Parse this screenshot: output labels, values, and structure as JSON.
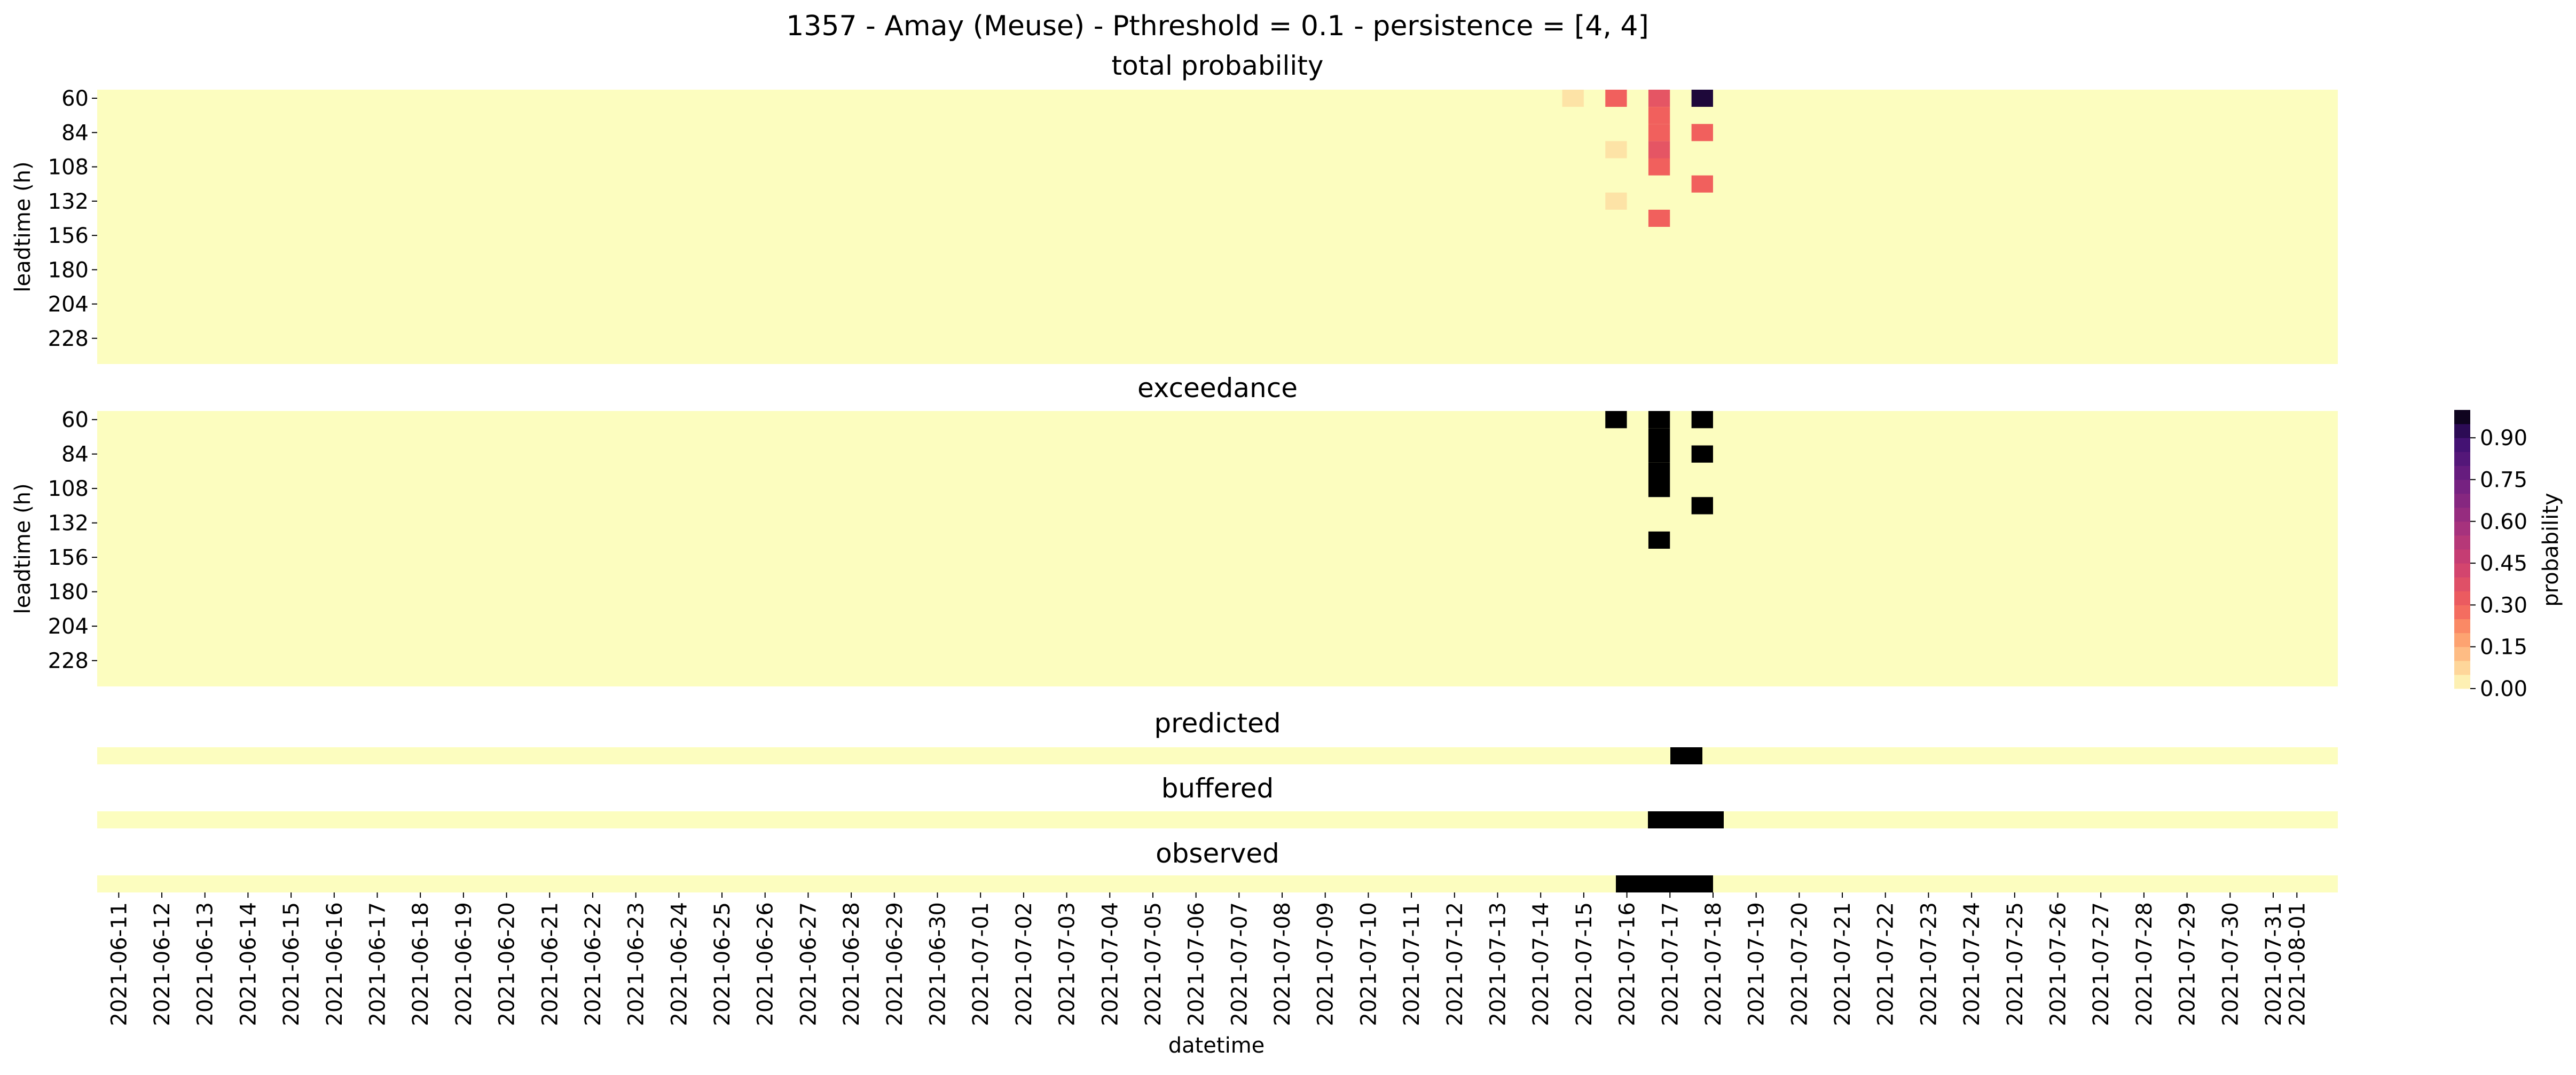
{
  "figure": {
    "title": "1357 - Amay (Meuse) - Pthreshold = 0.1 - persistence = [4, 4]"
  },
  "colors": {
    "background": "#ffffff",
    "colormap_low": "#fcfdbf",
    "colormap_high": "#000004",
    "exceedance_on": "#000000"
  },
  "chart_data": [
    {
      "type": "heatmap",
      "title": "total probability",
      "xlabel": "",
      "ylabel": "leadtime (h)",
      "y_tick_labels": [
        "60",
        "84",
        "108",
        "132",
        "156",
        "180",
        "204",
        "228"
      ],
      "x_range": [
        "2021-06-11",
        "2021-08-01"
      ],
      "colormap": "magma_r",
      "value_range": [
        0,
        1
      ],
      "background_value": 0.0,
      "highlighted_cells": [
        {
          "date": "2021-07-15",
          "leadtime": 60,
          "value": 0.05
        },
        {
          "date": "2021-07-16",
          "leadtime": 60,
          "value": 0.3
        },
        {
          "date": "2021-07-17",
          "leadtime": 60,
          "value": 0.35
        },
        {
          "date": "2021-07-17",
          "leadtime": 72,
          "value": 0.3
        },
        {
          "date": "2021-07-17",
          "leadtime": 84,
          "value": 0.3
        },
        {
          "date": "2021-07-17",
          "leadtime": 96,
          "value": 0.35
        },
        {
          "date": "2021-07-17",
          "leadtime": 108,
          "value": 0.3
        },
        {
          "date": "2021-07-18",
          "leadtime": 60,
          "value": 0.95
        },
        {
          "date": "2021-07-18",
          "leadtime": 84,
          "value": 0.3
        },
        {
          "date": "2021-07-18",
          "leadtime": 120,
          "value": 0.3
        },
        {
          "date": "2021-07-17",
          "leadtime": 144,
          "value": 0.3
        },
        {
          "date": "2021-07-16",
          "leadtime": 96,
          "value": 0.05
        },
        {
          "date": "2021-07-16",
          "leadtime": 132,
          "value": 0.05
        }
      ]
    },
    {
      "type": "heatmap",
      "title": "exceedance",
      "xlabel": "",
      "ylabel": "leadtime (h)",
      "y_tick_labels": [
        "60",
        "84",
        "108",
        "132",
        "156",
        "180",
        "204",
        "228"
      ],
      "x_range": [
        "2021-06-11",
        "2021-08-01"
      ],
      "value_range": [
        0,
        1
      ],
      "background_value": 0
    },
    {
      "type": "heatmap",
      "title": "predicted",
      "xlabel": "",
      "ylabel": "",
      "x_range": [
        "2021-06-11",
        "2021-08-01"
      ],
      "true_periods": [
        {
          "start": "2021-07-17",
          "end": "2021-07-18"
        }
      ]
    },
    {
      "type": "heatmap",
      "title": "buffered",
      "xlabel": "",
      "ylabel": "",
      "x_range": [
        "2021-06-11",
        "2021-08-01"
      ],
      "true_periods": [
        {
          "start": "2021-07-16",
          "end": "2021-07-18"
        }
      ]
    },
    {
      "type": "heatmap",
      "title": "observed",
      "xlabel": "datetime",
      "ylabel": "",
      "x_range": [
        "2021-06-11",
        "2021-08-01"
      ],
      "true_periods": [
        {
          "start": "2021-07-15",
          "end": "2021-07-18"
        }
      ],
      "x_tick_labels": [
        "2021-06-11",
        "2021-06-12",
        "2021-06-13",
        "2021-06-14",
        "2021-06-15",
        "2021-06-16",
        "2021-06-17",
        "2021-06-18",
        "2021-06-19",
        "2021-06-20",
        "2021-06-21",
        "2021-06-22",
        "2021-06-23",
        "2021-06-24",
        "2021-06-25",
        "2021-06-26",
        "2021-06-27",
        "2021-06-28",
        "2021-06-29",
        "2021-06-30",
        "2021-07-01",
        "2021-07-02",
        "2021-07-03",
        "2021-07-04",
        "2021-07-05",
        "2021-07-06",
        "2021-07-07",
        "2021-07-08",
        "2021-07-09",
        "2021-07-10",
        "2021-07-11",
        "2021-07-12",
        "2021-07-13",
        "2021-07-14",
        "2021-07-15",
        "2021-07-16",
        "2021-07-17",
        "2021-07-18",
        "2021-07-19",
        "2021-07-20",
        "2021-07-21",
        "2021-07-22",
        "2021-07-23",
        "2021-07-24",
        "2021-07-25",
        "2021-07-26",
        "2021-07-27",
        "2021-07-28",
        "2021-07-29",
        "2021-07-30",
        "2021-07-31",
        "2021-08-01"
      ]
    }
  ],
  "colorbar": {
    "label": "probability",
    "tick_labels": [
      "0.00",
      "0.15",
      "0.30",
      "0.45",
      "0.60",
      "0.75",
      "0.90"
    ],
    "range": [
      0,
      1
    ]
  }
}
